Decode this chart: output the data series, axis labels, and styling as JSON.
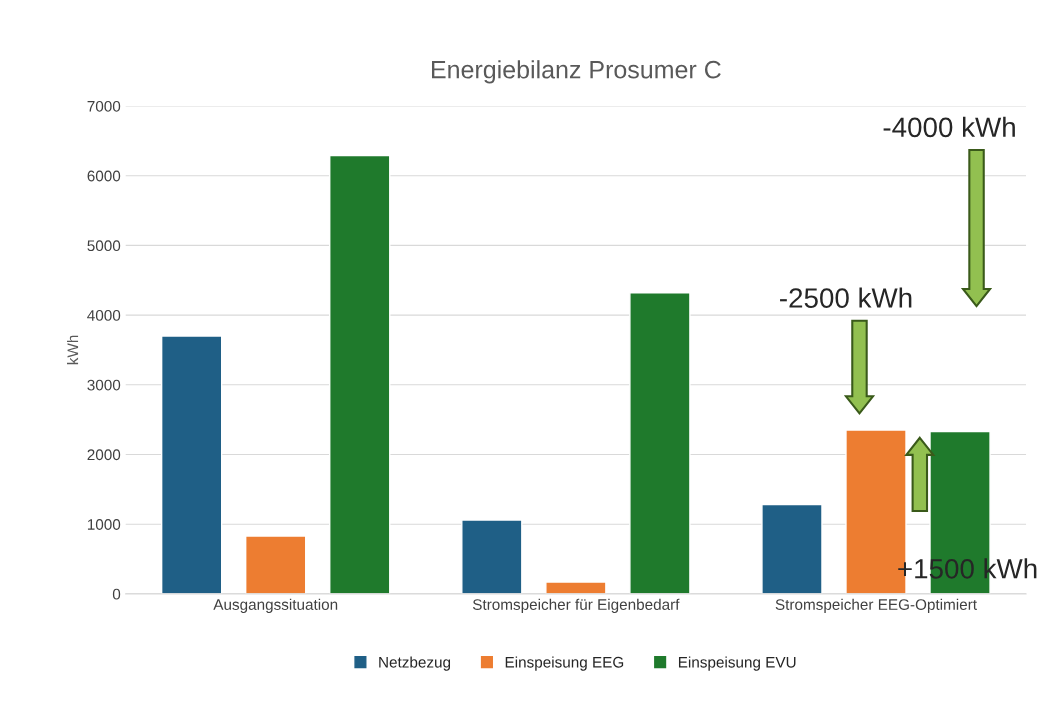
{
  "chart_data": {
    "type": "bar",
    "title": "Energiebilanz Prosumer C",
    "ylabel": "kWh",
    "categories": [
      "Ausgangssituation",
      "Stromspeicher für Eigenbedarf",
      "Stromspeicher EEG-Optimiert"
    ],
    "series": [
      {
        "name": "Netzbezug",
        "color": "#1f5f86",
        "values": [
          3700,
          1060,
          1280
        ]
      },
      {
        "name": "Einspeisung EEG",
        "color": "#ed7d31",
        "values": [
          830,
          170,
          2350
        ]
      },
      {
        "name": "Einspeisung EVU",
        "color": "#1f7a2c",
        "values": [
          6290,
          4320,
          2330
        ]
      }
    ],
    "ylim": [
      0,
      7000
    ],
    "yticks": [
      0,
      1000,
      2000,
      3000,
      4000,
      5000,
      6000,
      7000
    ],
    "grid": "y",
    "legend": "bottom",
    "annotations": [
      "-2500 kWh",
      "-4000 kWh",
      "+1500 kWh"
    ]
  }
}
